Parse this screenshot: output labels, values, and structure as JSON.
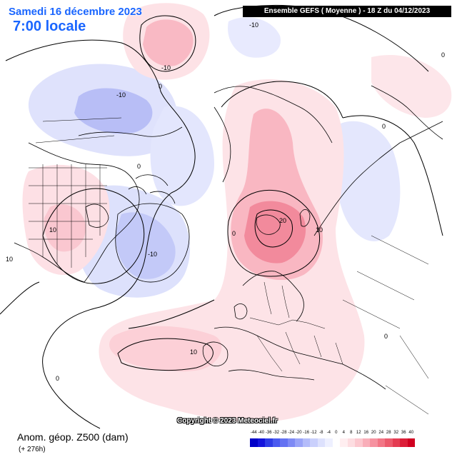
{
  "header": {
    "date": "Samedi 16 décembre 2023",
    "time": "7:00 locale",
    "model": "Ensemble GEFS  ( Moyenne )  -  18 Z du 04/12/2023"
  },
  "footer": {
    "copyright": "Copyright © 2023 Meteociel.fr",
    "field": "Anom. géop. Z500 (dam)",
    "lead": "(+ 276h)"
  },
  "contour_labels": [
    "-10",
    "-10",
    "-10",
    "-10",
    "0",
    "0",
    "0",
    "0",
    "0",
    "10",
    "10",
    "20",
    "10",
    "10",
    "0",
    "0"
  ],
  "colorbar": {
    "labels": [
      "-44",
      "-40",
      "-36",
      "-32",
      "-28",
      "-24",
      "-20",
      "-16",
      "-12",
      "-8",
      "-4",
      "0",
      "4",
      "8",
      "12",
      "16",
      "20",
      "24",
      "28",
      "32",
      "36",
      "40"
    ],
    "colors": [
      "#0000c8",
      "#1414dc",
      "#2e3ce6",
      "#4a5af0",
      "#6472f2",
      "#7e8af5",
      "#9aa4f8",
      "#b4bcfa",
      "#cad0fc",
      "#dde1fd",
      "#eef0ff",
      "#ffffff",
      "#ffeef0",
      "#fddde1",
      "#fcc8cf",
      "#f9aeb9",
      "#f692a0",
      "#f27686",
      "#ec5a6c",
      "#e43c52",
      "#dc1e38",
      "#d00020"
    ]
  }
}
